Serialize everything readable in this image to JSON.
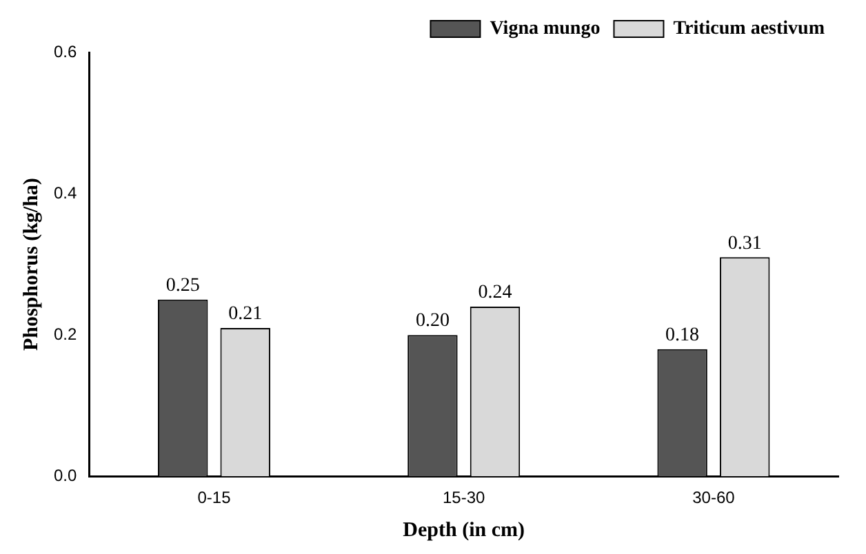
{
  "chart_data": {
    "type": "bar",
    "xlabel": "Depth (in cm)",
    "ylabel": "Phosphorus (kg/ha)",
    "categories": [
      "0-15",
      "15-30",
      "30-60"
    ],
    "series": [
      {
        "name": "Vigna mungo",
        "color": "#555555",
        "values": [
          0.25,
          0.2,
          0.18
        ],
        "value_labels": [
          "0.25",
          "0.20",
          "0.18"
        ]
      },
      {
        "name": "Triticum aestivum",
        "color": "#d9d9d9",
        "values": [
          0.21,
          0.24,
          0.31
        ],
        "value_labels": [
          "0.21",
          "0.24",
          "0.31"
        ]
      }
    ],
    "ylim": [
      0,
      0.6
    ],
    "yticks": [
      {
        "value": 0,
        "label": "0.0"
      },
      {
        "value": 0.2,
        "label": "0.2"
      },
      {
        "value": 0.4,
        "label": "0.4"
      },
      {
        "value": 0.6,
        "label": "0.6"
      }
    ],
    "grid": false,
    "legend": "top right"
  }
}
